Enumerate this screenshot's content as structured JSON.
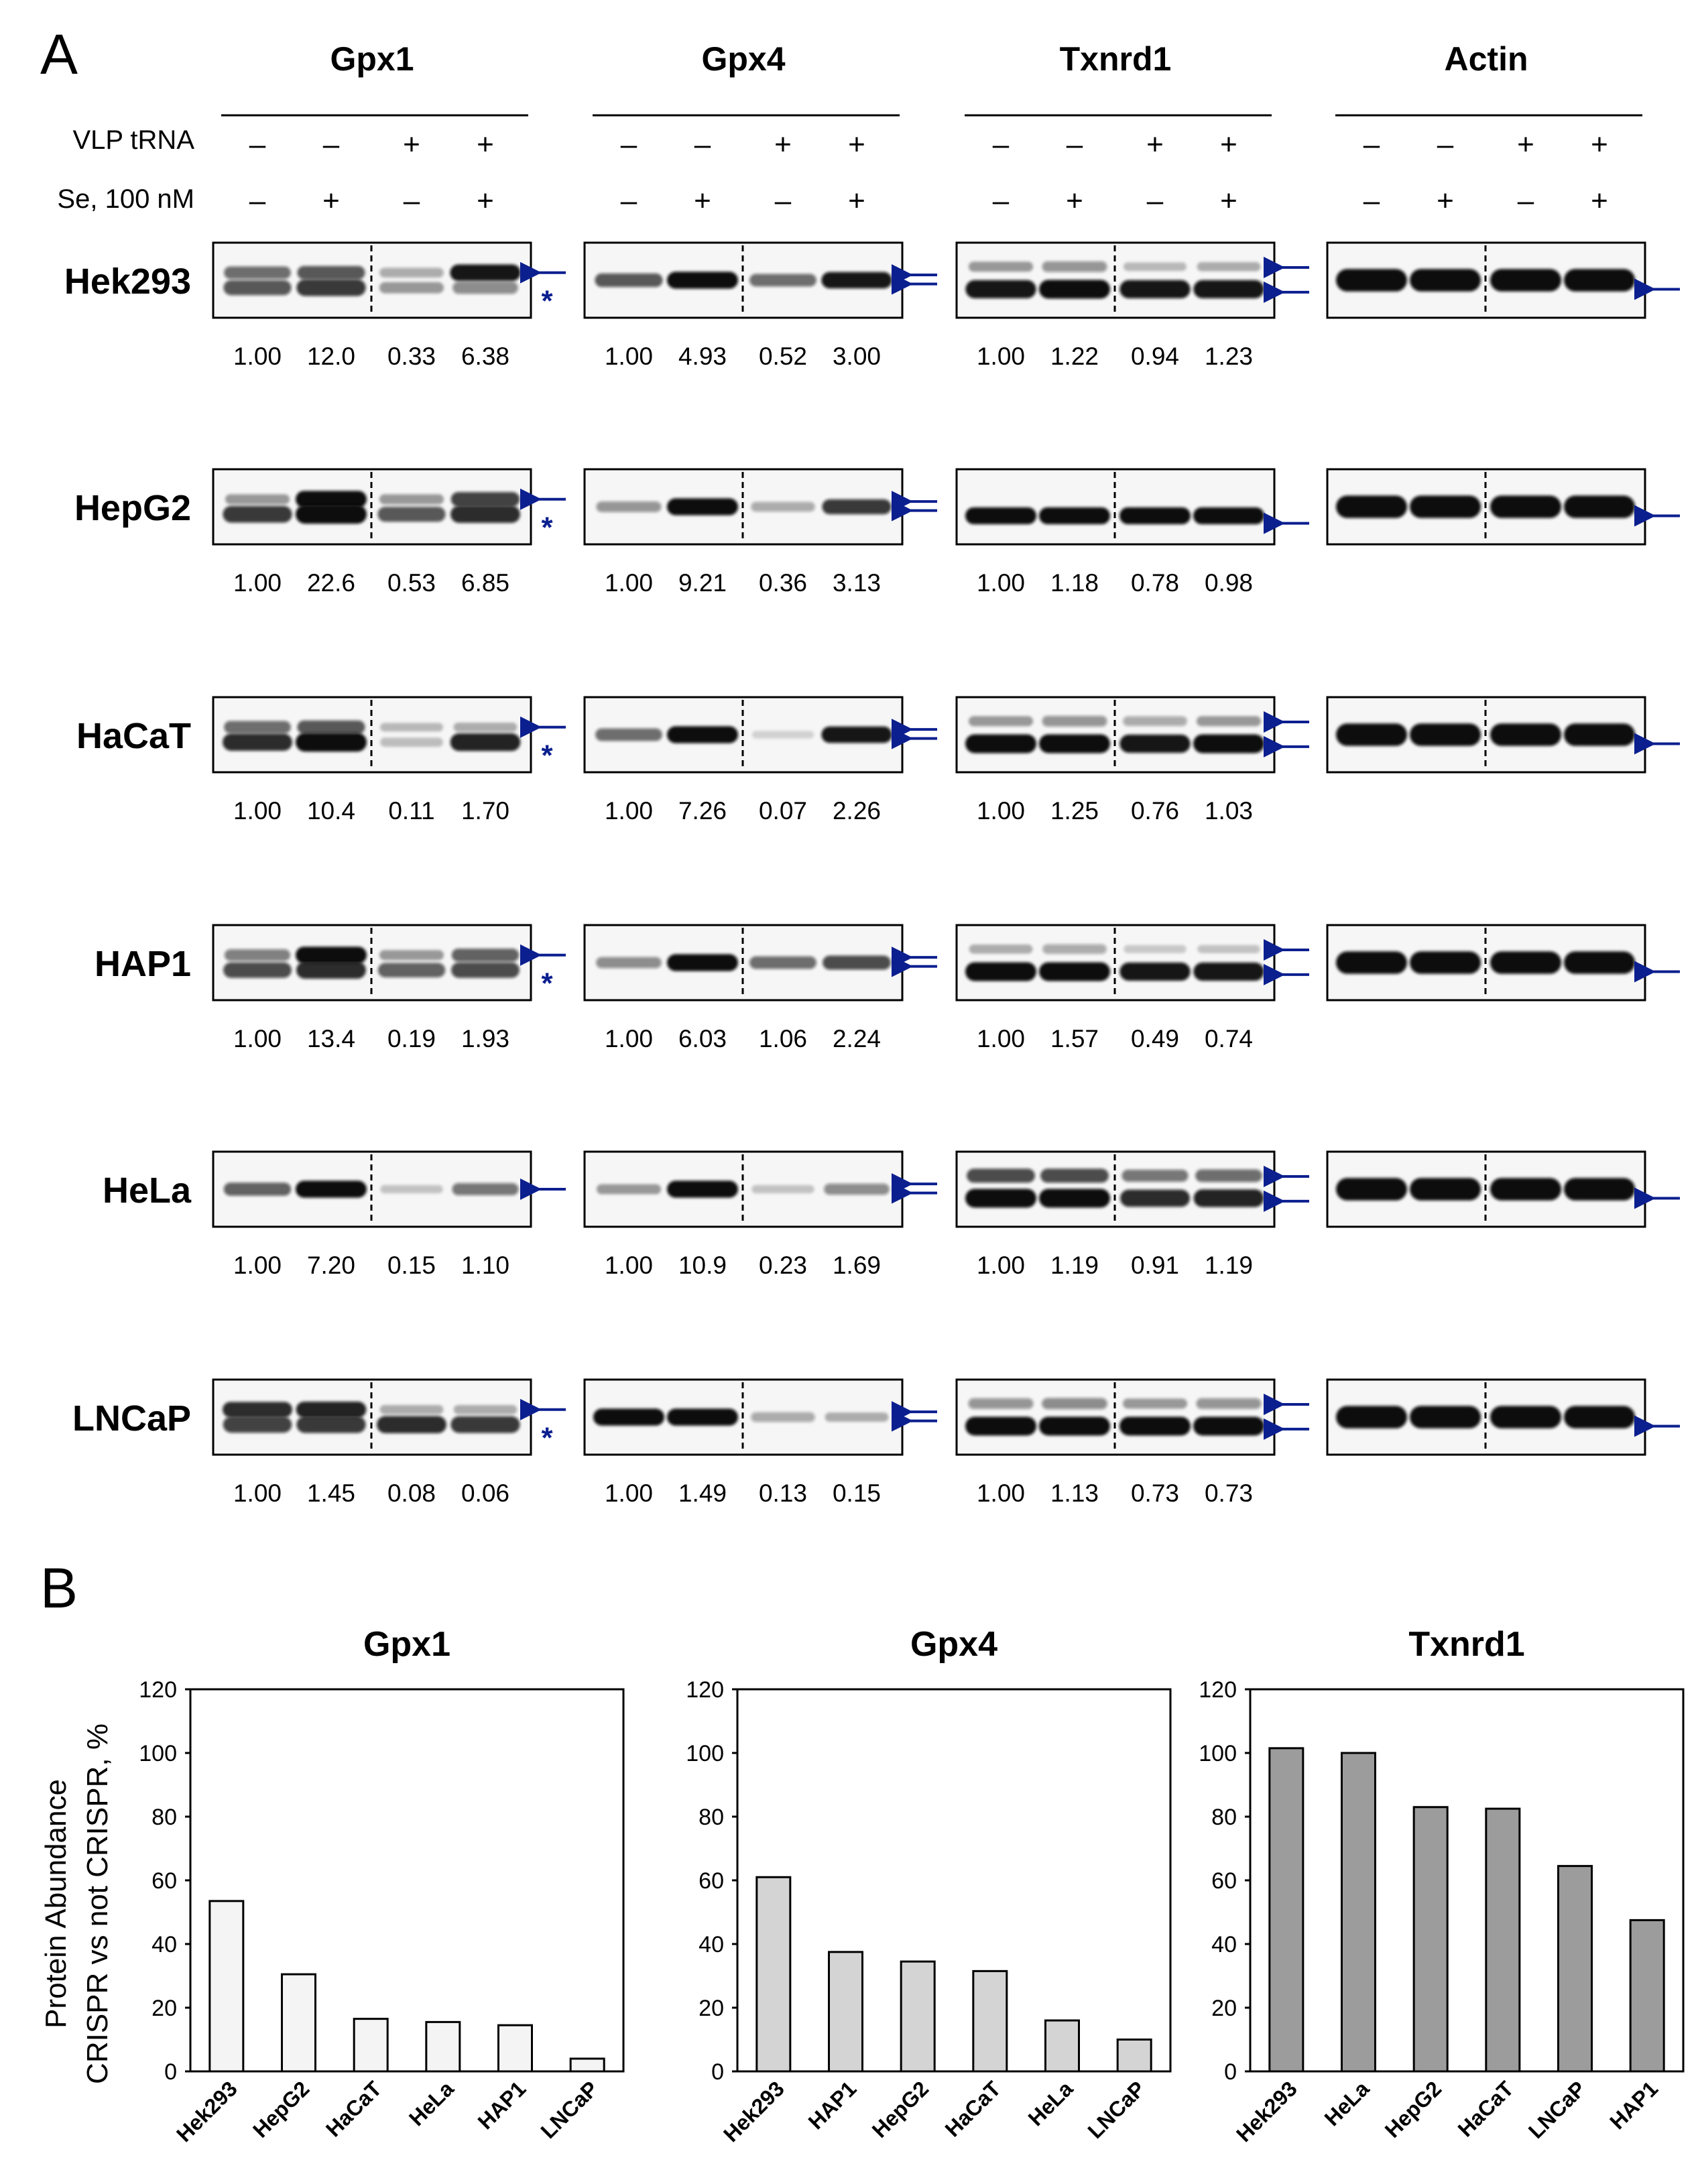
{
  "figure": {
    "panel_a_label": "A",
    "panel_b_label": "B",
    "row_labels": {
      "vlp": "VLP tRNA",
      "se": "Se, 100 nM"
    },
    "vlp_signs": [
      "–",
      "–",
      "+",
      "+"
    ],
    "se_signs": [
      "–",
      "+",
      "–",
      "+"
    ],
    "proteins": [
      "Gpx1",
      "Gpx4",
      "Txnrd1",
      "Actin"
    ],
    "cell_lines": [
      "Hek293",
      "HepG2",
      "HaCaT",
      "HAP1",
      "HeLa",
      "LNCaP"
    ],
    "asterisk": "*",
    "colors": {
      "arrow": "#0b1f8f",
      "band": "#111111",
      "gel_bg": "#f6f6f6"
    }
  },
  "quantification": {
    "Hek293": {
      "Gpx1": [
        "1.00",
        "12.0",
        "0.33",
        "6.38"
      ],
      "Gpx4": [
        "1.00",
        "4.93",
        "0.52",
        "3.00"
      ],
      "Txnrd1": [
        "1.00",
        "1.22",
        "0.94",
        "1.23"
      ]
    },
    "HepG2": {
      "Gpx1": [
        "1.00",
        "22.6",
        "0.53",
        "6.85"
      ],
      "Gpx4": [
        "1.00",
        "9.21",
        "0.36",
        "3.13"
      ],
      "Txnrd1": [
        "1.00",
        "1.18",
        "0.78",
        "0.98"
      ]
    },
    "HaCaT": {
      "Gpx1": [
        "1.00",
        "10.4",
        "0.11",
        "1.70"
      ],
      "Gpx4": [
        "1.00",
        "7.26",
        "0.07",
        "2.26"
      ],
      "Txnrd1": [
        "1.00",
        "1.25",
        "0.76",
        "1.03"
      ]
    },
    "HAP1": {
      "Gpx1": [
        "1.00",
        "13.4",
        "0.19",
        "1.93"
      ],
      "Gpx4": [
        "1.00",
        "6.03",
        "1.06",
        "2.24"
      ],
      "Txnrd1": [
        "1.00",
        "1.57",
        "0.49",
        "0.74"
      ]
    },
    "HeLa": {
      "Gpx1": [
        "1.00",
        "7.20",
        "0.15",
        "1.10"
      ],
      "Gpx4": [
        "1.00",
        "10.9",
        "0.23",
        "1.69"
      ],
      "Txnrd1": [
        "1.00",
        "1.19",
        "0.91",
        "1.19"
      ]
    },
    "LNCaP": {
      "Gpx1": [
        "1.00",
        "1.45",
        "0.08",
        "0.06"
      ],
      "Gpx4": [
        "1.00",
        "1.49",
        "0.13",
        "0.15"
      ],
      "Txnrd1": [
        "1.00",
        "1.13",
        "0.73",
        "0.73"
      ]
    }
  },
  "chart_data": [
    {
      "type": "bar",
      "title": "Gpx1",
      "categories": [
        "Hek293",
        "HepG2",
        "HaCaT",
        "HeLa",
        "HAP1",
        "LNCaP"
      ],
      "values": [
        53.5,
        30.5,
        16.5,
        15.5,
        14.5,
        4
      ],
      "ylabel": "Protein Abundance CRISPR vs not CRISPR, %",
      "ylabel_lines": [
        "Protein Abundance",
        "CRISPR vs not CRISPR, %"
      ],
      "ylim": [
        0,
        120
      ],
      "yticks": [
        0,
        20,
        40,
        60,
        80,
        100,
        120
      ],
      "bar_color": "#f4f4f4",
      "grid": false
    },
    {
      "type": "bar",
      "title": "Gpx4",
      "categories": [
        "Hek293",
        "HAP1",
        "HepG2",
        "HaCaT",
        "HeLa",
        "LNCaP"
      ],
      "values": [
        61,
        37.5,
        34.5,
        31.5,
        16,
        10
      ],
      "ylim": [
        0,
        120
      ],
      "yticks": [
        0,
        20,
        40,
        60,
        80,
        100,
        120
      ],
      "bar_color": "#d4d4d4",
      "grid": false
    },
    {
      "type": "bar",
      "title": "Txnrd1",
      "categories": [
        "Hek293",
        "HeLa",
        "HepG2",
        "HaCaT",
        "LNCaP",
        "HAP1"
      ],
      "values": [
        101.5,
        100,
        83,
        82.5,
        64.5,
        47.5
      ],
      "ylim": [
        0,
        120
      ],
      "yticks": [
        0,
        20,
        40,
        60,
        80,
        100,
        120
      ],
      "bar_color": "#9c9c9c",
      "grid": false
    }
  ],
  "blot_data": {
    "band_intensity": {
      "Hek293": {
        "Gpx1": [
          [
            0.55,
            0.65,
            0.25,
            0.95
          ],
          [
            0.65,
            0.8,
            0.3,
            0.4
          ]
        ],
        "Gpx4": [
          [
            0.65,
            1,
            0.55,
            0.95
          ]
        ],
        "Txnrd1": [
          [
            0.3,
            0.35,
            0.15,
            0.2
          ],
          [
            0.95,
            1,
            0.95,
            0.95
          ]
        ],
        "Actin": [
          [
            1,
            1,
            1,
            1
          ]
        ]
      },
      "HepG2": {
        "Gpx1": [
          [
            0.3,
            1,
            0.3,
            0.75
          ],
          [
            0.8,
            1,
            0.65,
            0.85
          ]
        ],
        "Gpx4": [
          [
            0.35,
            1,
            0.25,
            0.8
          ]
        ],
        "Txnrd1": [
          [
            1,
            1,
            1,
            1
          ]
        ],
        "Actin": [
          [
            1,
            1,
            1,
            1
          ]
        ]
      },
      "HaCaT": {
        "Gpx1": [
          [
            0.55,
            0.65,
            0.15,
            0.2
          ],
          [
            0.85,
            1,
            0.12,
            0.9
          ]
        ],
        "Gpx4": [
          [
            0.55,
            1,
            0.03,
            0.95
          ]
        ],
        "Txnrd1": [
          [
            0.3,
            0.35,
            0.25,
            0.3
          ],
          [
            1,
            1,
            0.95,
            1
          ]
        ],
        "Actin": [
          [
            1,
            1,
            1,
            1
          ]
        ]
      },
      "HAP1": {
        "Gpx1": [
          [
            0.45,
            1,
            0.3,
            0.6
          ],
          [
            0.7,
            0.85,
            0.6,
            0.7
          ]
        ],
        "Gpx4": [
          [
            0.4,
            1,
            0.55,
            0.7
          ]
        ],
        "Txnrd1": [
          [
            0.2,
            0.25,
            0.08,
            0.1
          ],
          [
            1,
            1,
            0.95,
            0.95
          ]
        ],
        "Actin": [
          [
            1,
            1,
            1,
            1
          ]
        ]
      },
      "HeLa": {
        "Gpx1": [
          [
            0.6,
            1,
            0.1,
            0.5
          ]
        ],
        "Gpx4": [
          [
            0.3,
            1,
            0.1,
            0.4
          ]
        ],
        "Txnrd1": [
          [
            0.7,
            0.7,
            0.5,
            0.55
          ],
          [
            1,
            1,
            0.85,
            0.9
          ]
        ],
        "Actin": [
          [
            1,
            1,
            1,
            1
          ]
        ]
      },
      "LNCaP": {
        "Gpx1": [
          [
            0.85,
            0.9,
            0.2,
            0.2
          ],
          [
            0.75,
            0.8,
            0.85,
            0.8
          ]
        ],
        "Gpx4": [
          [
            1,
            1,
            0.25,
            0.2
          ]
        ],
        "Txnrd1": [
          [
            0.35,
            0.4,
            0.3,
            0.35
          ],
          [
            1,
            1,
            1,
            1
          ]
        ],
        "Actin": [
          [
            1,
            1,
            1,
            1
          ]
        ]
      }
    }
  }
}
